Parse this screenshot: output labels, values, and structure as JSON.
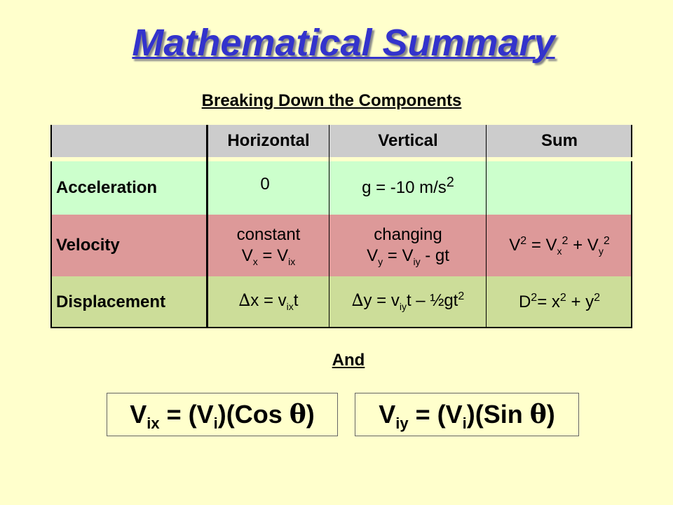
{
  "title": "Mathematical Summary",
  "subtitle": "Breaking Down the Components",
  "table": {
    "headers": [
      "Horizontal",
      "Vertical",
      "Sum"
    ],
    "rows": [
      {
        "label": "Acceleration",
        "horizontal": "0",
        "vertical": {
          "pre": "g = -10 m/s",
          "sup": "2"
        },
        "sum": ""
      },
      {
        "label": "Velocity",
        "horizontal": {
          "line1": "constant",
          "v": "V",
          "sub1": "x",
          "eq": " = V",
          "sub2": "ix"
        },
        "vertical": {
          "line1": "changing",
          "v": "V",
          "sub1": "y",
          "eq": " = V",
          "sub2": "iy",
          "tail": " - gt"
        },
        "sum": {
          "a": "V",
          "s1": "2",
          "b": " = V",
          "sb1": "x",
          "s2": "2",
          "c": " + V",
          "sb2": "y",
          "s3": "2"
        }
      },
      {
        "label": "Displacement",
        "horizontal": {
          "delta": "∆",
          "a": "x = v",
          "sub": "ix",
          "b": "t"
        },
        "vertical": {
          "delta": "∆",
          "a": "y = v",
          "sub": "iy",
          "b": "t – ½gt",
          "sup": "2"
        },
        "sum": {
          "a": "D",
          "s1": "2",
          "b": "= x",
          "s2": "2",
          "c": " + y",
          "s3": "2"
        }
      }
    ]
  },
  "and_label": "And",
  "formulas": [
    {
      "v": "V",
      "sub": "ix",
      "eq": " = (V",
      "sub2": "i",
      "mid": ")(Cos ",
      "theta": "θ",
      "end": ")"
    },
    {
      "v": "V",
      "sub": "iy",
      "eq": " = (V",
      "sub2": "i",
      "mid": ")(Sin ",
      "theta": "θ",
      "end": ")"
    }
  ]
}
